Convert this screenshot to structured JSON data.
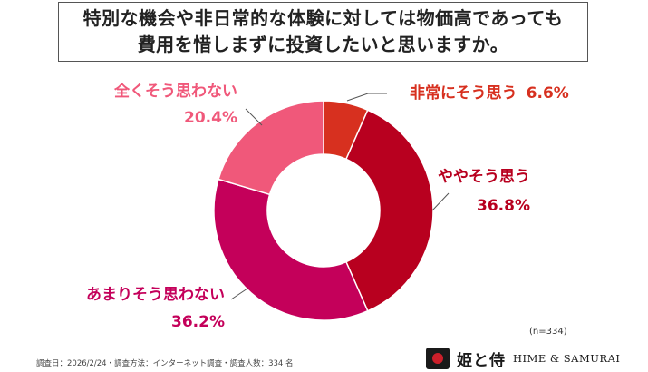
{
  "title": {
    "line1": "特別な機会や非日常的な体験に対しては物価高であっても",
    "line2": "費用を惜しまずに投資したいと思いますか。"
  },
  "chart_data": {
    "type": "pie",
    "variant": "donut",
    "unit": "%",
    "slices": [
      {
        "label": "非常にそう思う",
        "value": 6.6,
        "color": "#d7301f"
      },
      {
        "label": "ややそう思う",
        "value": 36.8,
        "color": "#b8001f"
      },
      {
        "label": "あまりそう思わない",
        "value": 36.2,
        "color": "#c4005a"
      },
      {
        "label": "全くそう思わない",
        "value": 20.4,
        "color": "#f0587a"
      }
    ]
  },
  "note": "(n=334)",
  "footer": "調査日：2026/2/24・調査方法：インターネット調査・調査人数：334 名",
  "logo": {
    "jp": "姫と侍",
    "en": "HIME & SAMURAI",
    "icon": "camera-icon"
  }
}
